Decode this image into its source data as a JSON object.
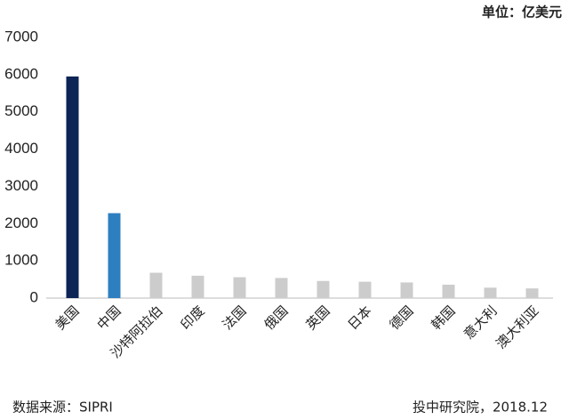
{
  "chart_data": {
    "type": "bar",
    "unit_label": "单位：亿美元",
    "source": "数据来源：SIPRI",
    "credit": "投中研究院，2018.12",
    "categories": [
      "美国",
      "中国",
      "沙特阿拉伯",
      "印度",
      "法国",
      "俄国",
      "英国",
      "日本",
      "德国",
      "韩国",
      "意大利",
      "澳大利亚"
    ],
    "values": [
      5950,
      2280,
      680,
      600,
      560,
      540,
      460,
      440,
      420,
      360,
      280,
      260
    ],
    "colors": [
      "#0d2456",
      "#2e7fc0",
      "#cccccc",
      "#cccccc",
      "#cccccc",
      "#cccccc",
      "#cccccc",
      "#cccccc",
      "#cccccc",
      "#cccccc",
      "#cccccc",
      "#cccccc"
    ],
    "ylim": [
      0,
      7000
    ],
    "yticks": [
      0,
      1000,
      2000,
      3000,
      4000,
      5000,
      6000,
      7000
    ],
    "grid": false
  }
}
